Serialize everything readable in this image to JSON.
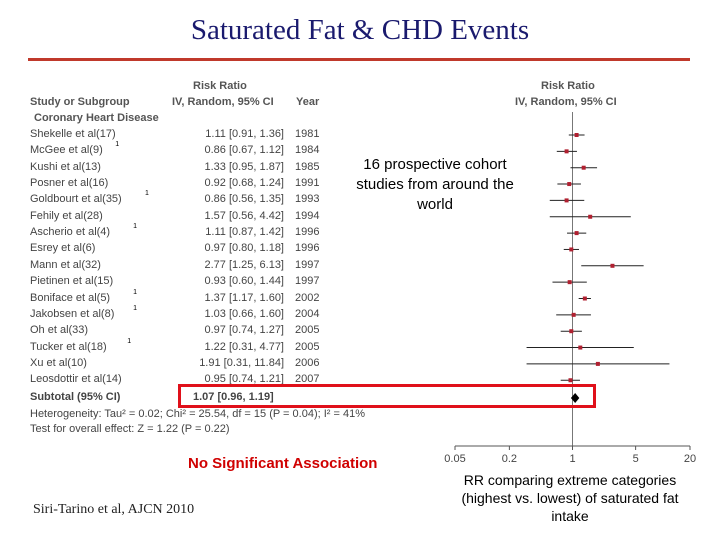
{
  "title": "Saturated Fat & CHD Events",
  "table": {
    "header_study": "Study or Subgroup",
    "header_rr_top": "Risk Ratio",
    "header_rr_bottom": "IV, Random, 95% CI",
    "header_year": "Year",
    "group_label": "Coronary Heart Disease",
    "subtotal_label": "Subtotal (95% CI)",
    "subtotal_ci": "1.07 [0.96, 1.19]",
    "heterogeneity": "Heterogeneity: Tau² = 0.02; Chi² = 25.54, df = 15 (P = 0.04); I² = 41%",
    "overall_effect": "Test for overall effect: Z = 1.22 (P = 0.22)"
  },
  "plot_header": {
    "top": "Risk Ratio",
    "bottom": "IV, Random, 95% CI"
  },
  "annotations": {
    "studies_note": "16 prospective cohort studies from around the world",
    "no_sig": "No Significant Association",
    "citation": "Siri-Tarino et al, AJCN 2010",
    "rr_note": "RR comparing extreme categories (highest vs. lowest) of saturated fat intake"
  },
  "colors": {
    "title": "#1a1a6e",
    "rule": "#c0392b",
    "highlight": "#e0101a",
    "marker": "#b02030",
    "no_sig": "#d00000"
  },
  "chart_data": {
    "type": "forest",
    "x_scale": "log",
    "xlim": [
      0.05,
      20
    ],
    "xticks": [
      "0.05",
      "0.2",
      "1",
      "5",
      "20"
    ],
    "reference_line": 1,
    "studies": [
      {
        "name": "Shekelle et al(17)",
        "sup": "",
        "ci_text": "1.11 [0.91, 1.36]",
        "year": "1981",
        "rr": 1.11,
        "lo": 0.91,
        "hi": 1.36
      },
      {
        "name": "McGee et al(9)",
        "sup": "1",
        "ci_text": "0.86 [0.67, 1.12]",
        "year": "1984",
        "rr": 0.86,
        "lo": 0.67,
        "hi": 1.12
      },
      {
        "name": "Kushi et al(13)",
        "sup": "",
        "ci_text": "1.33 [0.95, 1.87]",
        "year": "1985",
        "rr": 1.33,
        "lo": 0.95,
        "hi": 1.87
      },
      {
        "name": "Posner et al(16)",
        "sup": "",
        "ci_text": "0.92 [0.68, 1.24]",
        "year": "1991",
        "rr": 0.92,
        "lo": 0.68,
        "hi": 1.24
      },
      {
        "name": "Goldbourt et al(35)",
        "sup": "1",
        "ci_text": "0.86 [0.56, 1.35]",
        "year": "1993",
        "rr": 0.86,
        "lo": 0.56,
        "hi": 1.35
      },
      {
        "name": "Fehily et al(28)",
        "sup": "",
        "ci_text": "1.57 [0.56, 4.42]",
        "year": "1994",
        "rr": 1.57,
        "lo": 0.56,
        "hi": 4.42
      },
      {
        "name": "Ascherio et al(4)",
        "sup": "1",
        "ci_text": "1.11 [0.87, 1.42]",
        "year": "1996",
        "rr": 1.11,
        "lo": 0.87,
        "hi": 1.42
      },
      {
        "name": "Esrey et al(6)",
        "sup": "",
        "ci_text": "0.97 [0.80, 1.18]",
        "year": "1996",
        "rr": 0.97,
        "lo": 0.8,
        "hi": 1.18
      },
      {
        "name": "Mann et al(32)",
        "sup": "",
        "ci_text": "2.77 [1.25, 6.13]",
        "year": "1997",
        "rr": 2.77,
        "lo": 1.25,
        "hi": 6.13
      },
      {
        "name": "Pietinen et al(15)",
        "sup": "",
        "ci_text": "0.93 [0.60, 1.44]",
        "year": "1997",
        "rr": 0.93,
        "lo": 0.6,
        "hi": 1.44
      },
      {
        "name": "Boniface et al(5)",
        "sup": "1",
        "ci_text": "1.37 [1.17, 1.60]",
        "year": "2002",
        "rr": 1.37,
        "lo": 1.17,
        "hi": 1.6
      },
      {
        "name": "Jakobsen et al(8)",
        "sup": "1",
        "ci_text": "1.03 [0.66, 1.60]",
        "year": "2004",
        "rr": 1.03,
        "lo": 0.66,
        "hi": 1.6
      },
      {
        "name": "Oh et al(33)",
        "sup": "",
        "ci_text": "0.97 [0.74, 1.27]",
        "year": "2005",
        "rr": 0.97,
        "lo": 0.74,
        "hi": 1.27
      },
      {
        "name": "Tucker et al(18)",
        "sup": "1",
        "ci_text": "1.22 [0.31, 4.77]",
        "year": "2005",
        "rr": 1.22,
        "lo": 0.31,
        "hi": 4.77
      },
      {
        "name": "Xu et al(10)",
        "sup": "",
        "ci_text": "1.91 [0.31, 11.84]",
        "year": "2006",
        "rr": 1.91,
        "lo": 0.31,
        "hi": 11.84
      },
      {
        "name": "Leosdottir et al(14)",
        "sup": "",
        "ci_text": "0.95 [0.74, 1.21]",
        "year": "2007",
        "rr": 0.95,
        "lo": 0.74,
        "hi": 1.21
      }
    ],
    "subtotal": {
      "rr": 1.07,
      "lo": 0.96,
      "hi": 1.19
    }
  }
}
